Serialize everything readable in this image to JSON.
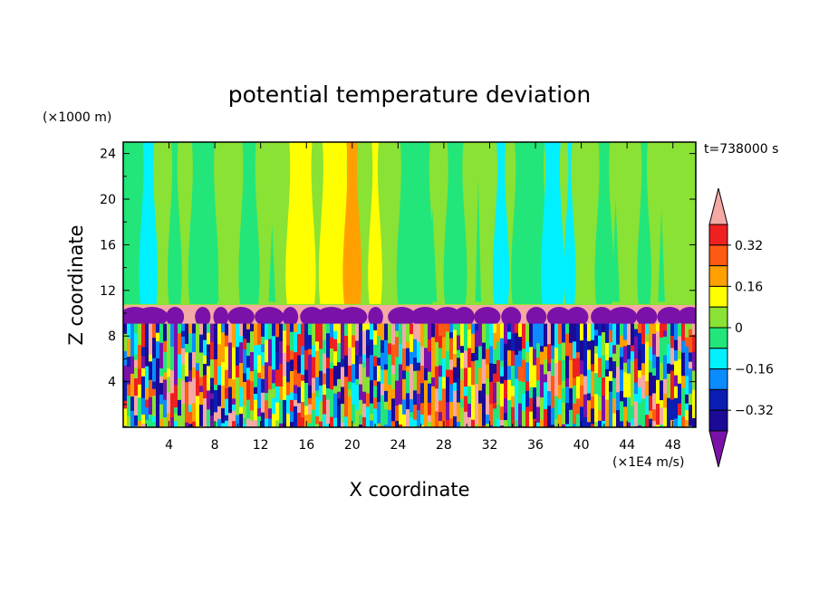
{
  "chart_data": {
    "type": "heatmap",
    "title": "potential temperature deviation",
    "xlabel": "X coordinate",
    "ylabel": "Z coordinate",
    "x_unit": "(×1E4 m/s)",
    "y_unit": "(×1000 m)",
    "time_label": "t=738000 s",
    "xlim": [
      0,
      50
    ],
    "ylim": [
      0,
      25
    ],
    "x_ticks": [
      "4",
      "8",
      "12",
      "16",
      "20",
      "24",
      "28",
      "32",
      "36",
      "40",
      "44",
      "48"
    ],
    "y_ticks": [
      "4",
      "8",
      "12",
      "16",
      "20",
      "24"
    ],
    "colorbar": {
      "labels": [
        "0.32",
        "0.16",
        "0",
        "-0.16",
        "-0.32"
      ],
      "levels": [
        {
          "min": 0.4,
          "max": null,
          "color": "#f4a9a4"
        },
        {
          "min": 0.32,
          "max": 0.4,
          "color": "#ee2020"
        },
        {
          "min": 0.24,
          "max": 0.32,
          "color": "#ff5a14"
        },
        {
          "min": 0.16,
          "max": 0.24,
          "color": "#ffa000"
        },
        {
          "min": 0.08,
          "max": 0.16,
          "color": "#ffff00"
        },
        {
          "min": 0.0,
          "max": 0.08,
          "color": "#8ae234"
        },
        {
          "min": -0.08,
          "max": 0.0,
          "color": "#22e67a"
        },
        {
          "min": -0.16,
          "max": -0.08,
          "color": "#00f0ff"
        },
        {
          "min": -0.24,
          "max": -0.16,
          "color": "#0a8cff"
        },
        {
          "min": -0.32,
          "max": -0.24,
          "color": "#0a1eb4"
        },
        {
          "min": -0.4,
          "max": -0.32,
          "color": "#1a0a96"
        },
        {
          "min": null,
          "max": -0.4,
          "color": "#7a12aa"
        }
      ]
    }
  }
}
